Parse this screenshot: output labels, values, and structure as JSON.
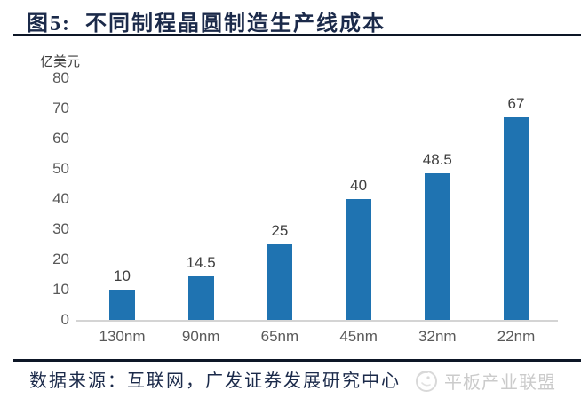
{
  "header": {
    "figure_label": "图5:",
    "title": "不同制程晶圆制造生产线成本"
  },
  "chart_data": {
    "type": "bar",
    "title": "不同制程晶圆制造生产线成本",
    "unit_label": "亿美元",
    "categories": [
      "130nm",
      "90nm",
      "65nm",
      "45nm",
      "32nm",
      "22nm"
    ],
    "values": [
      10,
      14.5,
      25,
      40,
      48.5,
      67
    ],
    "y_ticks": [
      0,
      10,
      20,
      30,
      40,
      50,
      60,
      70,
      80
    ],
    "ylim": [
      0,
      80
    ],
    "xlabel": "",
    "ylabel": "亿美元",
    "bar_color": "#1f73b1",
    "grid": false,
    "legend": false
  },
  "footer": {
    "source": "数据来源：互联网，广发证券发展研究中心",
    "watermark": "平板产业联盟"
  },
  "colors": {
    "accent_navy": "#1b2a4a",
    "rule": "#0d1626",
    "bar": "#1f73b1",
    "tick_text": "#595959",
    "value_text": "#3f3f3f",
    "axis_line": "#d4d4d4",
    "watermark": "#cbcbcb"
  }
}
